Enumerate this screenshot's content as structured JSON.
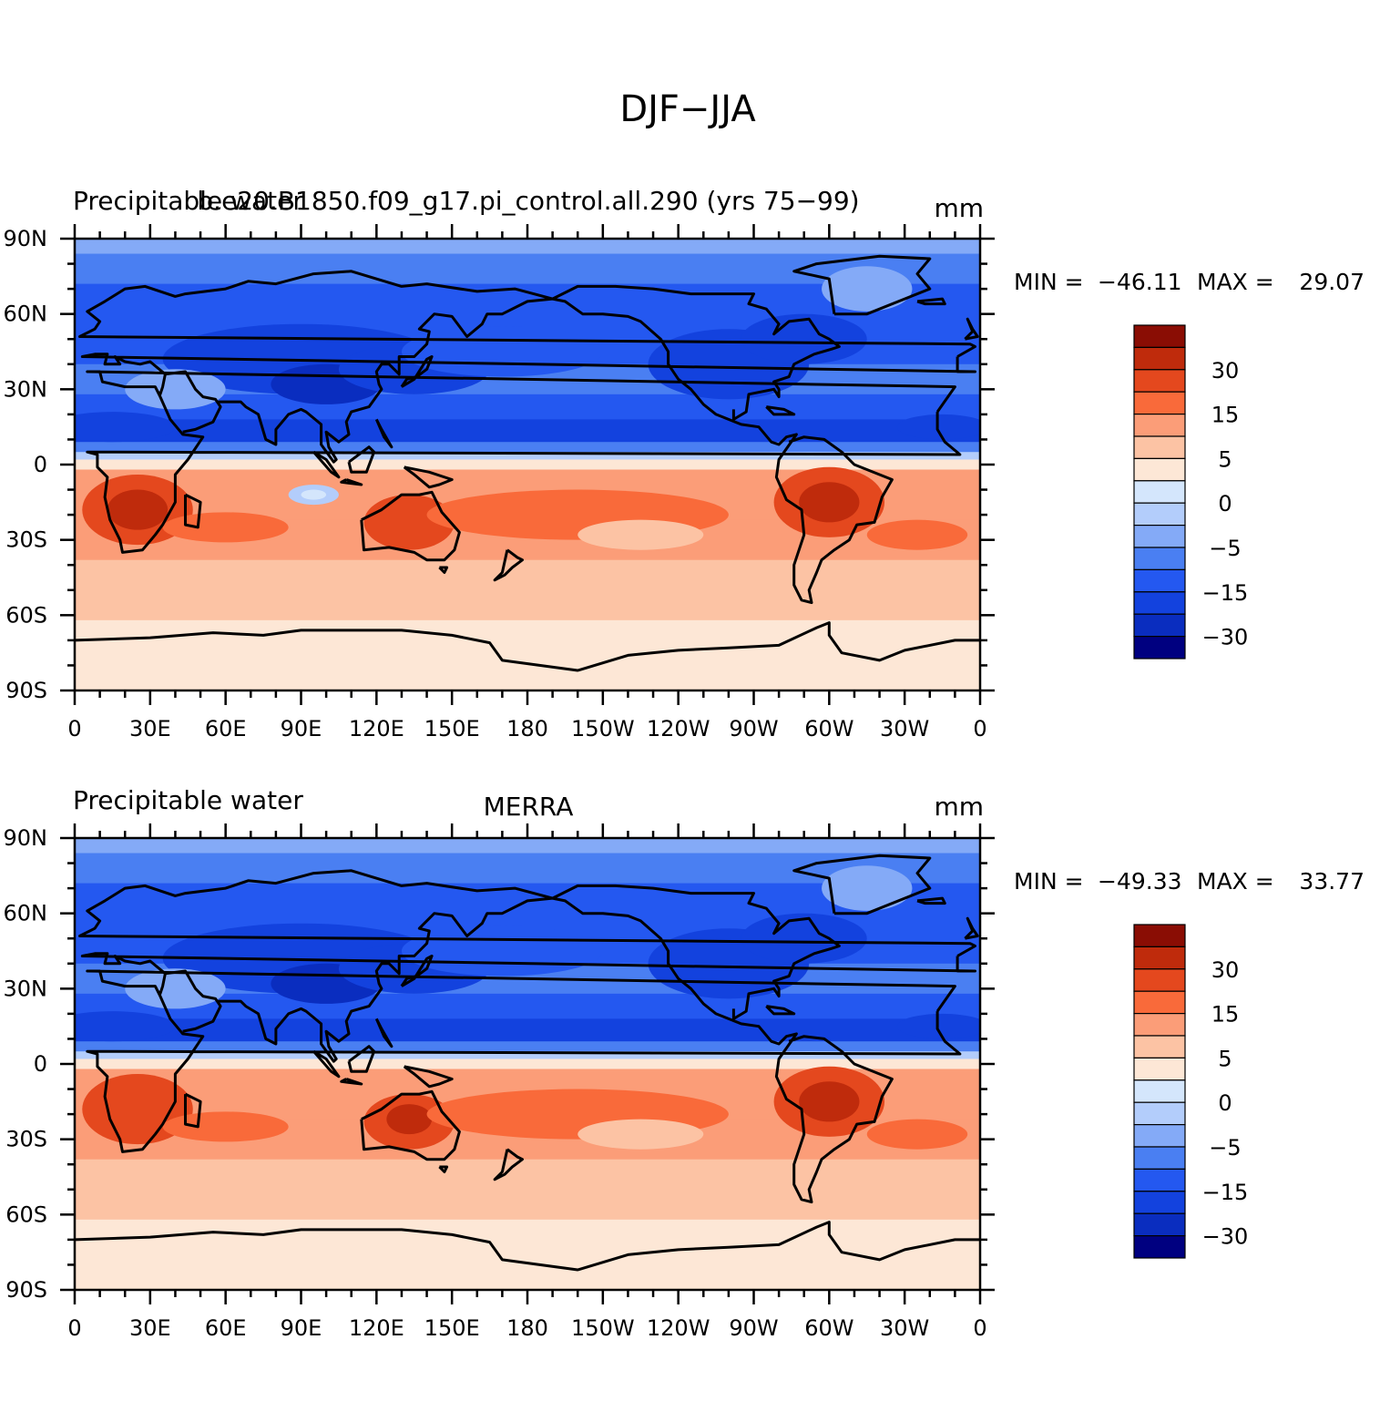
{
  "figure": {
    "title": "DJF−JJA"
  },
  "palette": [
    "#000080",
    "#0a2dbf",
    "#1342de",
    "#2458f0",
    "#4a7ff2",
    "#84aaf7",
    "#b3cdfb",
    "#d4e6fc",
    "#fde7d6",
    "#fcc3a4",
    "#fb9d78",
    "#f96a3a",
    "#e4481e",
    "#bf2b0c",
    "#8a0d04"
  ],
  "colorbar": {
    "labels": [
      "30",
      "15",
      "5",
      "0",
      "−5",
      "−15",
      "−30"
    ]
  },
  "axes": {
    "lat_labels": [
      "90N",
      "60N",
      "30N",
      "0",
      "30S",
      "60S",
      "90S"
    ],
    "lon_labels": [
      "0",
      "30E",
      "60E",
      "90E",
      "120E",
      "150E",
      "180",
      "150W",
      "120W",
      "90W",
      "60W",
      "30W",
      "0"
    ]
  },
  "panels": [
    {
      "left_title": "Precipitable water",
      "center_title": "b.e20.B1850.f09_g17.pi_control.all.290 (yrs 75−99)",
      "units": "mm",
      "stats": {
        "min_label": "MIN =",
        "min": "−46.11",
        "max_label": "MAX =",
        "max": "29.07"
      }
    },
    {
      "left_title": "Precipitable water",
      "center_title": "MERRA",
      "units": "mm",
      "stats": {
        "min_label": "MIN =",
        "min": "−49.33",
        "max_label": "MAX =",
        "max": "33.77"
      }
    }
  ]
}
